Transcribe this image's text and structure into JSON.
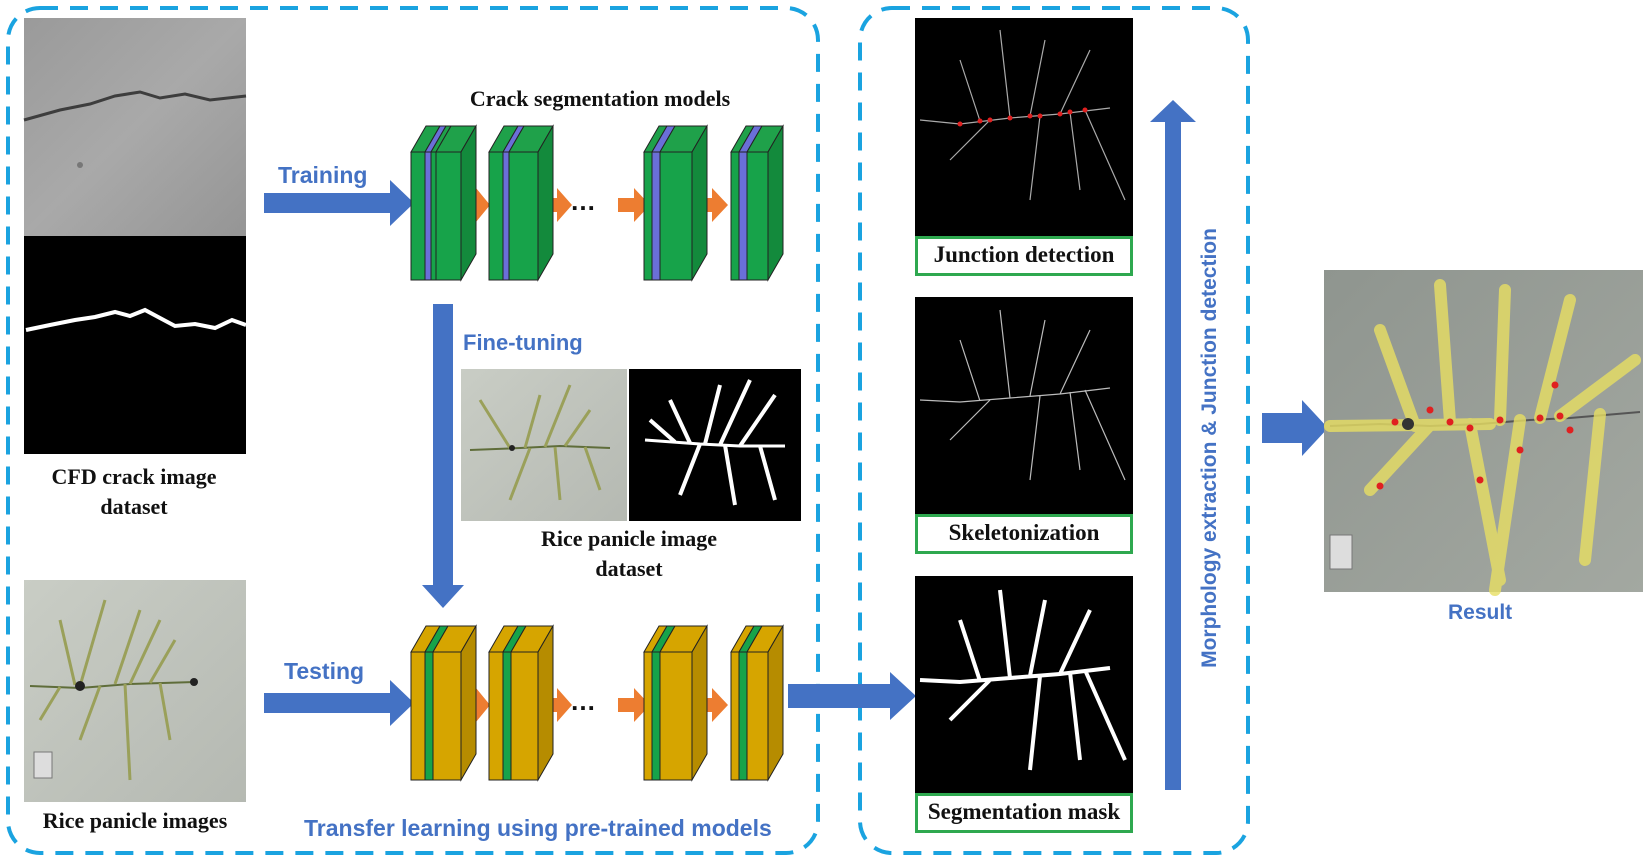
{
  "left_panel": {
    "crack_dataset_label": "CFD crack image dataset",
    "rice_images_label": "Rice panicle images",
    "models_title": "Crack segmentation models",
    "training_label": "Training",
    "finetune_label": "Fine-tuning",
    "rice_dataset_label": "Rice panicle image dataset",
    "testing_label": "Testing",
    "panel_caption": "Transfer learning using pre-trained models",
    "dots": "…"
  },
  "right_panel": {
    "junction_label": "Junction detection",
    "skeleton_label": "Skeletonization",
    "mask_label": "Segmentation mask",
    "vertical_label": "Morphology extraction & Junction detection"
  },
  "result_label": "Result",
  "colors": {
    "dashed_border": "#1aa3e0",
    "blue_arrow": "#4472c4",
    "orange_arrow": "#ed7d31",
    "green_layer": "#17a34a",
    "purple_layer": "#6a6fd8",
    "gold_layer": "#d6a500",
    "label_box_border": "#2ea84f"
  }
}
